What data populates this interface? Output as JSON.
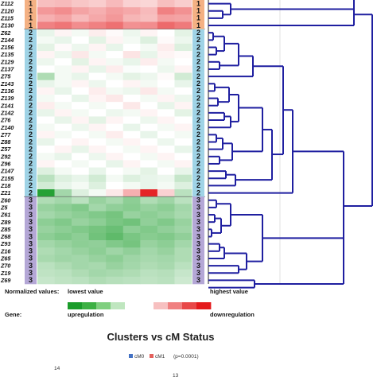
{
  "chart_data": [
    {
      "type": "heatmap",
      "rows": [
        {
          "label": "Z112",
          "cluster": "1",
          "values": [
            0.28,
            0.3,
            0.25,
            0.22,
            0.3,
            0.2,
            0.18,
            0.28,
            0.22
          ]
        },
        {
          "label": "Z120",
          "cluster": "1",
          "values": [
            0.45,
            0.5,
            0.4,
            0.35,
            0.42,
            0.38,
            0.3,
            0.55,
            0.48
          ]
        },
        {
          "label": "Z115",
          "cluster": "1",
          "values": [
            0.35,
            0.4,
            0.3,
            0.38,
            0.45,
            0.32,
            0.28,
            0.42,
            0.4
          ]
        },
        {
          "label": "Z130",
          "cluster": "1",
          "values": [
            0.55,
            0.6,
            0.5,
            0.55,
            0.62,
            0.48,
            0.5,
            0.65,
            0.58
          ]
        },
        {
          "label": "Z62",
          "cluster": "2",
          "values": [
            -0.1,
            0.05,
            -0.05,
            0.08,
            0.02,
            -0.08,
            0.05,
            0.0,
            -0.12
          ]
        },
        {
          "label": "Z144",
          "cluster": "2",
          "values": [
            -0.05,
            -0.1,
            0.0,
            -0.12,
            0.05,
            -0.05,
            -0.15,
            0.02,
            -0.08
          ]
        },
        {
          "label": "Z156",
          "cluster": "2",
          "values": [
            -0.12,
            0.02,
            -0.08,
            0.05,
            -0.1,
            0.0,
            -0.05,
            0.08,
            -0.15
          ]
        },
        {
          "label": "Z135",
          "cluster": "2",
          "values": [
            0.05,
            -0.08,
            0.1,
            -0.05,
            0.0,
            0.12,
            -0.1,
            0.05,
            0.02
          ]
        },
        {
          "label": "Z129",
          "cluster": "2",
          "values": [
            -0.08,
            0.0,
            -0.12,
            0.05,
            -0.05,
            -0.1,
            0.08,
            -0.05,
            0.0
          ]
        },
        {
          "label": "Z137",
          "cluster": "2",
          "values": [
            0.0,
            -0.05,
            0.05,
            -0.1,
            0.08,
            -0.02,
            0.0,
            -0.08,
            0.05
          ]
        },
        {
          "label": "Z75",
          "cluster": "2",
          "values": [
            -0.35,
            -0.05,
            -0.1,
            0.0,
            -0.05,
            -0.12,
            -0.08,
            0.02,
            -0.2
          ]
        },
        {
          "label": "Z143",
          "cluster": "2",
          "values": [
            -0.1,
            -0.05,
            0.05,
            -0.08,
            0.0,
            0.05,
            -0.05,
            0.0,
            -0.1
          ]
        },
        {
          "label": "Z136",
          "cluster": "2",
          "values": [
            0.05,
            -0.1,
            0.0,
            0.08,
            -0.05,
            -0.08,
            0.1,
            -0.05,
            0.0
          ]
        },
        {
          "label": "Z139",
          "cluster": "2",
          "values": [
            -0.05,
            0.0,
            -0.1,
            0.05,
            0.1,
            0.0,
            -0.05,
            0.05,
            -0.08
          ]
        },
        {
          "label": "Z141",
          "cluster": "2",
          "values": [
            0.08,
            -0.05,
            0.0,
            -0.05,
            0.0,
            0.1,
            0.0,
            -0.1,
            0.05
          ]
        },
        {
          "label": "Z142",
          "cluster": "2",
          "values": [
            -0.1,
            0.05,
            -0.05,
            0.0,
            -0.08,
            -0.05,
            0.05,
            0.0,
            -0.12
          ]
        },
        {
          "label": "Z76",
          "cluster": "2",
          "values": [
            0.0,
            -0.1,
            0.05,
            -0.12,
            0.05,
            0.0,
            -0.08,
            0.05,
            0.0
          ]
        },
        {
          "label": "Z140",
          "cluster": "2",
          "values": [
            -0.05,
            0.0,
            -0.08,
            0.05,
            0.0,
            -0.1,
            0.0,
            -0.05,
            0.05
          ]
        },
        {
          "label": "Z77",
          "cluster": "2",
          "values": [
            0.05,
            -0.05,
            0.0,
            -0.05,
            0.08,
            0.0,
            -0.1,
            0.0,
            -0.05
          ]
        },
        {
          "label": "Z88",
          "cluster": "2",
          "values": [
            -0.1,
            0.0,
            0.05,
            0.0,
            -0.05,
            0.05,
            0.0,
            -0.08,
            0.0
          ]
        },
        {
          "label": "Z57",
          "cluster": "2",
          "values": [
            0.0,
            0.05,
            -0.1,
            0.05,
            0.0,
            -0.05,
            0.05,
            0.0,
            -0.1
          ]
        },
        {
          "label": "Z92",
          "cluster": "2",
          "values": [
            -0.05,
            -0.1,
            0.0,
            -0.08,
            0.05,
            0.0,
            -0.05,
            0.05,
            0.0
          ]
        },
        {
          "label": "Z96",
          "cluster": "2",
          "values": [
            0.05,
            0.0,
            -0.05,
            0.0,
            -0.1,
            0.05,
            0.0,
            -0.05,
            0.05
          ]
        },
        {
          "label": "Z147",
          "cluster": "2",
          "values": [
            -0.15,
            -0.05,
            0.0,
            -0.1,
            0.0,
            -0.05,
            -0.12,
            0.0,
            -0.1
          ]
        },
        {
          "label": "Z155",
          "cluster": "2",
          "values": [
            -0.3,
            -0.15,
            -0.1,
            -0.2,
            -0.05,
            -0.15,
            -0.1,
            -0.08,
            -0.25
          ]
        },
        {
          "label": "Z18",
          "cluster": "2",
          "values": [
            -0.2,
            -0.1,
            -0.05,
            -0.15,
            0.0,
            -0.05,
            -0.1,
            -0.05,
            -0.15
          ]
        },
        {
          "label": "Z21",
          "cluster": "2",
          "values": [
            -0.95,
            -0.4,
            -0.15,
            -0.05,
            0.1,
            0.35,
            0.95,
            0.2,
            -0.3
          ]
        },
        {
          "label": "Z60",
          "cluster": "3",
          "values": [
            -0.35,
            -0.4,
            -0.3,
            -0.45,
            -0.38,
            -0.5,
            -0.35,
            -0.42,
            -0.3
          ]
        },
        {
          "label": "Z5",
          "cluster": "3",
          "values": [
            -0.45,
            -0.5,
            -0.55,
            -0.4,
            -0.48,
            -0.52,
            -0.45,
            -0.5,
            -0.4
          ]
        },
        {
          "label": "Z61",
          "cluster": "3",
          "values": [
            -0.4,
            -0.45,
            -0.5,
            -0.55,
            -0.6,
            -0.45,
            -0.5,
            -0.45,
            -0.38
          ]
        },
        {
          "label": "Z89",
          "cluster": "3",
          "values": [
            -0.5,
            -0.55,
            -0.45,
            -0.5,
            -0.58,
            -0.62,
            -0.48,
            -0.55,
            -0.45
          ]
        },
        {
          "label": "Z85",
          "cluster": "3",
          "values": [
            -0.45,
            -0.5,
            -0.55,
            -0.6,
            -0.65,
            -0.5,
            -0.55,
            -0.48,
            -0.42
          ]
        },
        {
          "label": "Z68",
          "cluster": "3",
          "values": [
            -0.5,
            -0.55,
            -0.5,
            -0.62,
            -0.7,
            -0.58,
            -0.52,
            -0.55,
            -0.48
          ]
        },
        {
          "label": "Z93",
          "cluster": "3",
          "values": [
            -0.4,
            -0.45,
            -0.5,
            -0.48,
            -0.55,
            -0.6,
            -0.45,
            -0.5,
            -0.4
          ]
        },
        {
          "label": "Z16",
          "cluster": "3",
          "values": [
            -0.35,
            -0.4,
            -0.45,
            -0.5,
            -0.42,
            -0.48,
            -0.4,
            -0.45,
            -0.35
          ]
        },
        {
          "label": "Z65",
          "cluster": "3",
          "values": [
            -0.38,
            -0.42,
            -0.4,
            -0.45,
            -0.5,
            -0.42,
            -0.38,
            -0.4,
            -0.35
          ]
        },
        {
          "label": "Z70",
          "cluster": "3",
          "values": [
            -0.3,
            -0.35,
            -0.4,
            -0.38,
            -0.45,
            -0.4,
            -0.35,
            -0.38,
            -0.3
          ]
        },
        {
          "label": "Z19",
          "cluster": "3",
          "values": [
            -0.28,
            -0.3,
            -0.35,
            -0.4,
            -0.38,
            -0.35,
            -0.3,
            -0.32,
            -0.25
          ]
        },
        {
          "label": "Z69",
          "cluster": "3",
          "values": [
            -0.25,
            -0.28,
            -0.3,
            -0.35,
            -0.32,
            -0.3,
            -0.28,
            -0.3,
            -0.22
          ]
        }
      ],
      "cluster_colors": {
        "1": "#f4b183",
        "2": "#9fd3e6",
        "3": "#b4a7d6"
      },
      "low_color": "#1a9c2a",
      "mid_color": "#ffffff",
      "high_color": "#e41a1c",
      "dendrogram_color": "#1f1fa0",
      "legend": {
        "normalized_label": "Normalized values:",
        "lowest_label": "lowest value",
        "highest_label": "highest value",
        "gene_label": "Gene:",
        "up_label": "upregulation",
        "down_label": "downregulation",
        "scale_colors": [
          "#1a9c2a",
          "#3cb043",
          "#7fcf7f",
          "#bfe6bf",
          "#ffffff",
          "#ffffff",
          "#f7c0c0",
          "#f08080",
          "#e84848",
          "#e41a1c"
        ]
      }
    },
    {
      "type": "bar",
      "title": "Clusters vs cM Status",
      "series": [
        {
          "name": "cM0",
          "color": "#4472c4"
        },
        {
          "name": "cM1",
          "color": "#e3605c"
        }
      ],
      "pvalue": "(p=0.0001)",
      "visible_value_labels": [
        "14",
        "13"
      ]
    }
  ]
}
